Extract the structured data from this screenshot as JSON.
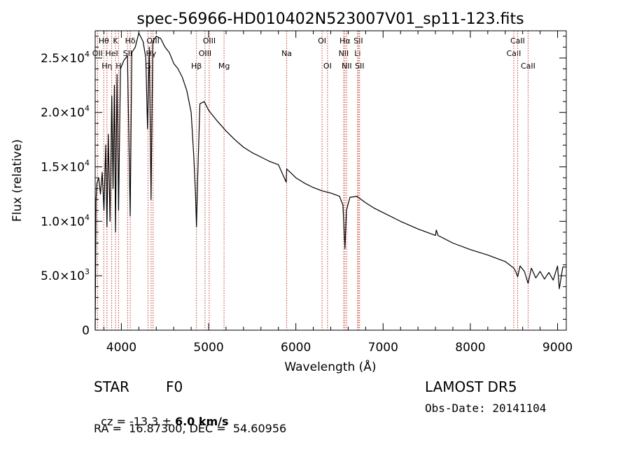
{
  "chart_data": {
    "type": "line",
    "title": "spec-56966-HD010402N523007V01_sp11-123.fits",
    "xlabel": "Wavelength (Å)",
    "ylabel": "Flux (relative)",
    "xlim": [
      3700,
      9100
    ],
    "ylim": [
      0,
      27500
    ],
    "x_ticks": [
      4000,
      5000,
      6000,
      7000,
      8000,
      9000
    ],
    "x_tick_labels": [
      "4000",
      "5000",
      "6000",
      "7000",
      "8000",
      "9000"
    ],
    "y_ticks": [
      0,
      5000,
      10000,
      15000,
      20000,
      25000
    ],
    "y_tick_labels": [
      {
        "mant": "0",
        "exp": ""
      },
      {
        "mant": "5.0×10",
        "exp": "3"
      },
      {
        "mant": "1.0×10",
        "exp": "4"
      },
      {
        "mant": "1.5×10",
        "exp": "4"
      },
      {
        "mant": "2.0×10",
        "exp": "4"
      },
      {
        "mant": "2.5×10",
        "exp": "4"
      }
    ],
    "grid": false,
    "series": [
      {
        "color": "#000000",
        "x": [
          3700,
          3710,
          3720,
          3740,
          3760,
          3780,
          3800,
          3820,
          3835,
          3850,
          3870,
          3890,
          3905,
          3920,
          3933,
          3950,
          3968,
          3990,
          4030,
          4070,
          4101,
          4120,
          4160,
          4200,
          4250,
          4280,
          4300,
          4320,
          4340,
          4360,
          4400,
          4450,
          4500,
          4550,
          4600,
          4650,
          4700,
          4750,
          4800,
          4830,
          4850,
          4861,
          4875,
          4900,
          4950,
          5000,
          5100,
          5200,
          5300,
          5400,
          5500,
          5600,
          5700,
          5800,
          5889,
          5895,
          5950,
          6000,
          6100,
          6200,
          6300,
          6400,
          6500,
          6540,
          6563,
          6580,
          6620,
          6700,
          6800,
          6900,
          7000,
          7200,
          7400,
          7600,
          7610,
          7630,
          7800,
          8000,
          8200,
          8400,
          8498,
          8520,
          8542,
          8570,
          8620,
          8662,
          8700,
          8750,
          8800,
          8850,
          8900,
          8950,
          9000,
          9020,
          9060,
          9100
        ],
        "y": [
          100,
          12000,
          13500,
          14000,
          12500,
          14500,
          11000,
          17000,
          9500,
          18000,
          10000,
          21500,
          13000,
          22500,
          9000,
          23500,
          11000,
          24000,
          24800,
          25200,
          10500,
          25500,
          26000,
          27300,
          26500,
          25000,
          18500,
          26000,
          12000,
          26500,
          27000,
          26800,
          26000,
          25500,
          24500,
          24000,
          23200,
          22000,
          20000,
          16000,
          12500,
          9500,
          14000,
          20800,
          21000,
          20200,
          19200,
          18300,
          17500,
          16800,
          16300,
          15900,
          15500,
          15200,
          13600,
          14800,
          14400,
          14000,
          13500,
          13100,
          12800,
          12600,
          12300,
          11500,
          7500,
          11000,
          12200,
          12300,
          11700,
          11200,
          10800,
          10000,
          9300,
          8700,
          9200,
          8700,
          8000,
          7400,
          6900,
          6300,
          5700,
          5400,
          4900,
          5900,
          5400,
          4300,
          5700,
          4800,
          5400,
          4700,
          5300,
          4600,
          5900,
          3800,
          5800,
          5800
        ]
      }
    ],
    "lines": [
      {
        "w": 3727,
        "label": "OII",
        "row": 2
      },
      {
        "w": 3798,
        "label": "Hθ",
        "row": 1
      },
      {
        "w": 3835,
        "label": "Hη",
        "row": 3
      },
      {
        "w": 3889,
        "label": "HeI",
        "row": 2
      },
      {
        "w": 3933,
        "label": "K",
        "row": 1
      },
      {
        "w": 3968,
        "label": "H",
        "row": 3
      },
      {
        "w": 4072,
        "label": "SII",
        "row": 2
      },
      {
        "w": 4102,
        "label": "Hδ",
        "row": 1
      },
      {
        "w": 4305,
        "label": "G",
        "row": 3
      },
      {
        "w": 4341,
        "label": "Hγ",
        "row": 2
      },
      {
        "w": 4363,
        "label": "OIII",
        "row": 1
      },
      {
        "w": 4861,
        "label": "Hβ",
        "row": 3
      },
      {
        "w": 4959,
        "label": "OIII",
        "row": 2
      },
      {
        "w": 5007,
        "label": "OIII",
        "row": 1
      },
      {
        "w": 5177,
        "label": "Mg",
        "row": 3
      },
      {
        "w": 5895,
        "label": "Na",
        "row": 2
      },
      {
        "w": 6300,
        "label": "OI",
        "row": 1
      },
      {
        "w": 6363,
        "label": "OI",
        "row": 3
      },
      {
        "w": 6548,
        "label": "NII",
        "row": 2
      },
      {
        "w": 6563,
        "label": "Hα",
        "row": 1
      },
      {
        "w": 6583,
        "label": "NII",
        "row": 3
      },
      {
        "w": 6708,
        "label": "Li",
        "row": 2
      },
      {
        "w": 6716,
        "label": "SII",
        "row": 1
      },
      {
        "w": 6731,
        "label": "SII",
        "row": 3
      },
      {
        "w": 8498,
        "label": "CaII",
        "row": 2
      },
      {
        "w": 8542,
        "label": "CaII",
        "row": 1
      },
      {
        "w": 8662,
        "label": "CaII",
        "row": 3
      }
    ]
  },
  "info": {
    "class": "STAR",
    "subclass": "F0",
    "survey": "LAMOST DR5",
    "cz_label": "cz = ",
    "cz_value": "-13.3",
    "cz_pm": " ± ",
    "cz_err": "6.0",
    "cz_unit": " km/s",
    "obs_date": "Obs-Date: 20141104",
    "radec": "RA =  16.87300, DEC =  54.60956"
  }
}
